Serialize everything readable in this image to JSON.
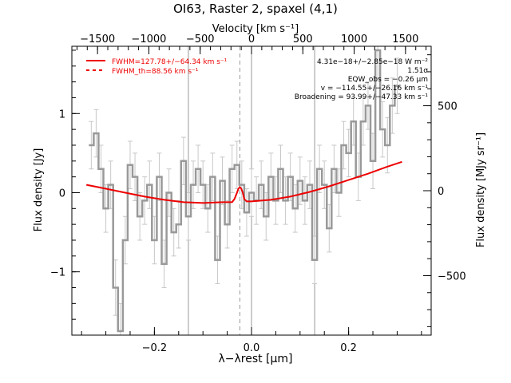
{
  "chart_data": {
    "type": "line",
    "title": "OI63, Raster 2, spaxel (4,1)",
    "xlabel_bottom": "λ−λrest [μm]",
    "xlabel_top": "Velocity [km s⁻¹]",
    "ylabel_left": "Flux density [Jy]",
    "ylabel_right": "Flux density [MJy sr⁻¹]",
    "xlim": [
      -0.37,
      0.37
    ],
    "ylim_left": [
      -1.8,
      1.85
    ],
    "ylim_right": [
      -850,
      850
    ],
    "x_ticks_bottom": [
      -0.2,
      0.0,
      0.2
    ],
    "x_ticks_top": [
      -1500,
      -1000,
      -500,
      0,
      500,
      1000,
      1500
    ],
    "y_ticks_left": [
      -1,
      0,
      1
    ],
    "y_ticks_right": [
      -500,
      0,
      500
    ],
    "vertical_lines": [
      {
        "x": -0.13,
        "style": "solid"
      },
      {
        "x": 0.0,
        "style": "solid"
      },
      {
        "x": 0.13,
        "style": "solid"
      },
      {
        "x": -0.024,
        "style": "dashed"
      }
    ],
    "legend": [
      {
        "label": "FWHM=127.78+/−64.34 km s⁻¹",
        "style": "solid",
        "color": "#ee0000"
      },
      {
        "label": "FWHM_th=88.56 km s⁻¹",
        "style": "dashed",
        "color": "#ee0000"
      }
    ],
    "annotations": [
      "4.31e−18+/−2.85e−18 W m⁻²",
      "1.51σ",
      "EQW_obs = −0.26 μm",
      "v = −114.55+/−26.16 km s⁻¹",
      "Broadening = 93.99+/−47.33 km s⁻¹"
    ],
    "series": [
      {
        "color": "#999999",
        "style": "step",
        "x": [
          -0.33,
          -0.32,
          -0.31,
          -0.3,
          -0.29,
          -0.28,
          -0.27,
          -0.26,
          -0.25,
          -0.24,
          -0.23,
          -0.22,
          -0.21,
          -0.2,
          -0.19,
          -0.18,
          -0.17,
          -0.16,
          -0.15,
          -0.14,
          -0.13,
          -0.12,
          -0.11,
          -0.1,
          -0.09,
          -0.08,
          -0.07,
          -0.06,
          -0.05,
          -0.04,
          -0.03,
          -0.02,
          -0.01,
          0.0,
          0.01,
          0.02,
          0.03,
          0.04,
          0.05,
          0.06,
          0.07,
          0.08,
          0.09,
          0.1,
          0.11,
          0.12,
          0.13,
          0.14,
          0.15,
          0.16,
          0.17,
          0.18,
          0.19,
          0.2,
          0.21,
          0.22,
          0.23,
          0.24,
          0.25,
          0.26,
          0.27,
          0.28,
          0.29,
          0.3
        ],
        "values": [
          0.6,
          0.75,
          0.3,
          -0.2,
          0.1,
          -1.2,
          -1.75,
          -0.6,
          0.35,
          0.2,
          -0.3,
          -0.1,
          0.1,
          -0.6,
          0.2,
          -0.9,
          0.0,
          -0.5,
          -0.4,
          0.4,
          -0.3,
          0.1,
          0.3,
          0.1,
          -0.2,
          0.2,
          -0.85,
          0.15,
          -0.4,
          0.3,
          0.35,
          0.1,
          -0.25,
          0.0,
          -0.1,
          0.1,
          -0.3,
          0.2,
          -0.1,
          0.3,
          -0.1,
          0.2,
          -0.2,
          0.15,
          -0.1,
          0.1,
          -0.85,
          0.3,
          0.1,
          -0.45,
          0.3,
          0.0,
          0.6,
          0.5,
          0.9,
          0.2,
          0.9,
          1.1,
          0.4,
          1.8,
          0.8,
          0.6,
          1.1,
          1.35
        ],
        "errors": [
          0.3,
          0.3,
          0.3,
          0.3,
          0.3,
          0.35,
          0.35,
          0.3,
          0.3,
          0.3,
          0.3,
          0.3,
          0.3,
          0.3,
          0.3,
          0.3,
          0.3,
          0.3,
          0.3,
          0.3,
          0.3,
          0.3,
          0.3,
          0.3,
          0.3,
          0.3,
          0.3,
          0.3,
          0.3,
          0.3,
          0.3,
          0.3,
          0.3,
          0.3,
          0.3,
          0.3,
          0.3,
          0.3,
          0.3,
          0.3,
          0.3,
          0.3,
          0.3,
          0.3,
          0.3,
          0.3,
          0.3,
          0.3,
          0.3,
          0.3,
          0.3,
          0.3,
          0.3,
          0.3,
          0.3,
          0.3,
          0.3,
          0.3,
          0.35,
          0.35,
          0.35,
          0.35,
          0.35,
          0.35
        ]
      },
      {
        "color": "#ee0000",
        "style": "line",
        "x": [
          -0.34,
          -0.3,
          -0.26,
          -0.22,
          -0.18,
          -0.14,
          -0.1,
          -0.06,
          -0.04,
          -0.035,
          -0.03,
          -0.027,
          -0.024,
          -0.021,
          -0.018,
          -0.015,
          -0.01,
          0.0,
          0.04,
          0.08,
          0.12,
          0.16,
          0.2,
          0.24,
          0.28,
          0.31
        ],
        "values": [
          0.1,
          0.05,
          0.0,
          -0.05,
          -0.09,
          -0.12,
          -0.13,
          -0.12,
          -0.12,
          -0.08,
          0.0,
          0.05,
          0.07,
          0.05,
          0.0,
          -0.08,
          -0.11,
          -0.11,
          -0.09,
          -0.05,
          0.01,
          0.08,
          0.16,
          0.24,
          0.33,
          0.39
        ]
      }
    ]
  }
}
